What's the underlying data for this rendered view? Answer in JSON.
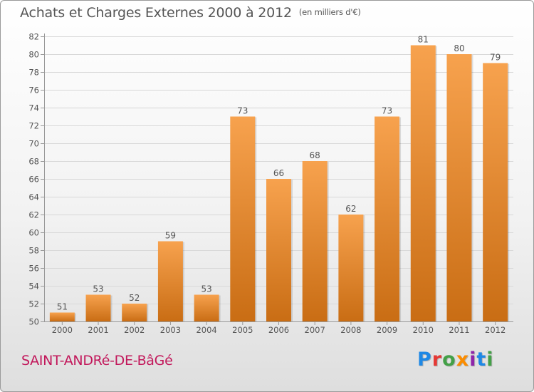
{
  "header": {
    "title": "Achats et Charges Externes 2000 à 2012",
    "subtitle": "(en milliers d'€)"
  },
  "footer": {
    "place": "SAINT-ANDRé-DE-BâGé",
    "logo": "Proxiti",
    "logo_colors": [
      "#1e88e5",
      "#e53935",
      "#43a047",
      "#fb8c00",
      "#8e24aa",
      "#1e88e5",
      "#43a047"
    ]
  },
  "colors": {
    "bar_top": "#f7a24e",
    "bar_bottom": "#c96d14",
    "grid": "#d8d8d8",
    "text": "#555555"
  },
  "chart_data": {
    "type": "bar",
    "categories": [
      "2000",
      "2001",
      "2002",
      "2003",
      "2004",
      "2005",
      "2006",
      "2007",
      "2008",
      "2009",
      "2010",
      "2011",
      "2012"
    ],
    "values": [
      51,
      53,
      52,
      59,
      53,
      73,
      66,
      68,
      62,
      73,
      81,
      80,
      79
    ],
    "ylim": [
      50,
      82
    ],
    "yticks": [
      50,
      52,
      54,
      56,
      58,
      60,
      62,
      64,
      66,
      68,
      70,
      72,
      74,
      76,
      78,
      80,
      82
    ],
    "grid": true,
    "data_labels": true
  }
}
